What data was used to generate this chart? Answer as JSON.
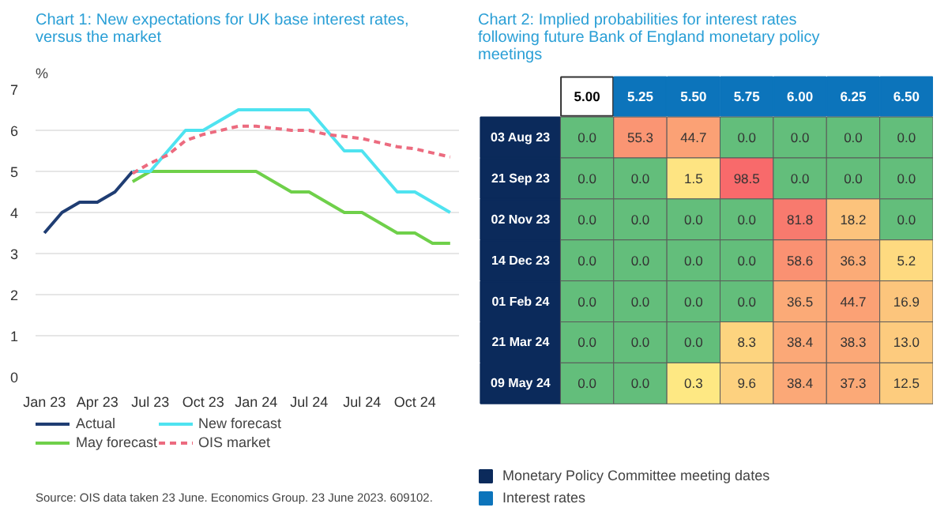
{
  "chart_data": [
    {
      "type": "line",
      "title": "Chart 1: New expectations for UK base interest rates, versus the market",
      "ylabel": "%",
      "categories": [
        "Jan 23",
        null,
        null,
        "Apr 23",
        null,
        null,
        "Jul 23",
        null,
        null,
        "Oct 23",
        null,
        null,
        "Jan 24",
        null,
        null,
        "Jul 24",
        null,
        null,
        "Jul 24",
        null,
        null,
        "Oct 24",
        null,
        null
      ],
      "series": [
        {
          "name": "Actual",
          "color": "#1f3d73",
          "values": [
            3.5,
            4.0,
            4.25,
            4.25,
            4.5,
            5.0,
            null,
            null,
            null,
            null,
            null,
            null,
            null,
            null,
            null,
            null,
            null,
            null,
            null,
            null,
            null,
            null,
            null,
            null
          ]
        },
        {
          "name": "May forecast",
          "color": "#6fd04a",
          "values": [
            null,
            null,
            null,
            null,
            null,
            4.75,
            5.0,
            5.0,
            5.0,
            5.0,
            5.0,
            5.0,
            5.0,
            4.75,
            4.5,
            4.5,
            4.25,
            4.0,
            4.0,
            3.75,
            3.5,
            3.5,
            3.25,
            3.25
          ]
        },
        {
          "name": "New forecast",
          "color": "#4fe3f0",
          "values": [
            null,
            null,
            null,
            null,
            null,
            5.0,
            5.0,
            5.5,
            6.0,
            6.0,
            6.25,
            6.5,
            6.5,
            6.5,
            6.5,
            6.5,
            6.0,
            5.5,
            5.5,
            5.0,
            4.5,
            4.5,
            4.25,
            4.0
          ]
        },
        {
          "name": "OIS market",
          "color": "#ec6b7f",
          "line_style": "dashed",
          "values": [
            null,
            null,
            null,
            null,
            null,
            4.95,
            5.2,
            5.4,
            5.75,
            5.9,
            6.0,
            6.1,
            6.1,
            6.05,
            6.0,
            6.0,
            5.9,
            5.85,
            5.8,
            5.7,
            5.6,
            5.55,
            5.45,
            5.35
          ]
        }
      ],
      "ylim": [
        0,
        7
      ],
      "yticks": [
        0,
        1,
        2,
        3,
        4,
        5,
        6,
        7
      ],
      "grid": "y",
      "legend": "bottom",
      "marker": "none",
      "annotations": [
        "Source: OIS data taken 23 June. Economics Group. 23 June 2023. 609102."
      ]
    },
    {
      "type": "heatmap",
      "title": "Chart 2: Implied probabilities for interest rates following future Bank of England monetary policy meetings",
      "categories": [
        "5.00",
        "5.25",
        "5.50",
        "5.75",
        "6.00",
        "6.25",
        "6.50"
      ],
      "y_categories": [
        "03 Aug 23",
        "21 Sep 23",
        "02 Nov 23",
        "14 Dec 23",
        "01 Feb 24",
        "21 Mar 24",
        "09 May 24"
      ],
      "cells": [
        [
          0.0,
          55.3,
          44.7,
          0.0,
          0.0,
          0.0,
          0.0
        ],
        [
          0.0,
          0.0,
          1.5,
          98.5,
          0.0,
          0.0,
          0.0
        ],
        [
          0.0,
          0.0,
          0.0,
          0.0,
          81.8,
          18.2,
          0.0
        ],
        [
          0.0,
          0.0,
          0.0,
          0.0,
          58.6,
          36.3,
          5.2
        ],
        [
          0.0,
          0.0,
          0.0,
          0.0,
          36.5,
          44.7,
          16.9
        ],
        [
          0.0,
          0.0,
          0.0,
          8.3,
          38.4,
          38.3,
          13.0
        ],
        [
          0.0,
          0.0,
          0.3,
          9.6,
          38.4,
          37.3,
          12.5
        ]
      ],
      "cell_labels": [
        [
          "0.0",
          "55.3",
          "44.7",
          "0.0",
          "0.0",
          "0.0",
          "0.0"
        ],
        [
          "0.0",
          "0.0",
          "1.5",
          "98.5",
          "0.0",
          "0.0",
          "0.0"
        ],
        [
          "0.0",
          "0.0",
          "0.0",
          "0.0",
          "81.8",
          "18.2",
          "0.0"
        ],
        [
          "0.0",
          "0.0",
          "0.0",
          "0.0",
          "58.6",
          "36.3",
          "5.2"
        ],
        [
          "0.0",
          "0.0",
          "0.0",
          "0.0",
          "36.5",
          "44.7",
          "16.9"
        ],
        [
          "0.0",
          "0.0",
          "0.0",
          "8.3",
          "38.4",
          "38.3",
          "13.0"
        ],
        [
          "0.0",
          "0.0",
          "0.3",
          "9.6",
          "38.4",
          "37.3",
          "12.5"
        ]
      ],
      "series": [
        {
          "name": "Monetary Policy Committee meeting dates",
          "color": "#0b2a5b",
          "values": [
            null,
            null,
            null,
            null,
            null,
            null,
            null
          ]
        },
        {
          "name": "Interest rates",
          "color": "#0c74bb",
          "values": [
            null,
            null,
            null,
            null,
            null,
            null,
            null
          ]
        }
      ],
      "legend": "bottom left"
    }
  ]
}
